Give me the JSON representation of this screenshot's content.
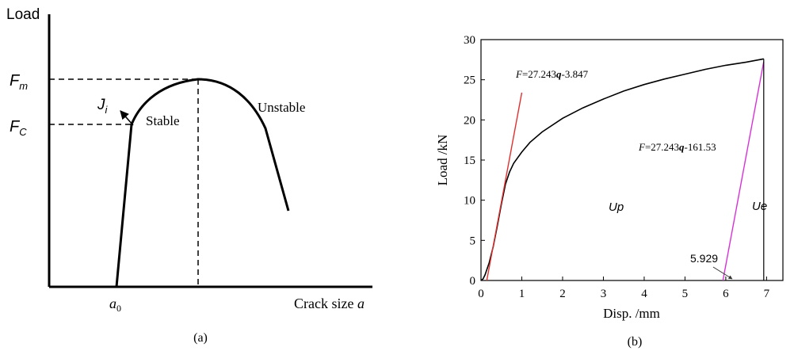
{
  "chart_data": [
    {
      "panel_label": "(a)",
      "type": "line",
      "ylabel": "Load",
      "xlabel_prefix": "Crack size ",
      "xlabel_var": "a",
      "x_tick": {
        "base": "a",
        "sub": "0"
      },
      "y_ticks": [
        {
          "base": "F",
          "sub": "m"
        },
        {
          "base": "F",
          "sub": "C"
        }
      ],
      "annotations": {
        "ji": {
          "base": "J",
          "sub": "i"
        },
        "stable": "Stable",
        "unstable": "Unstable"
      }
    },
    {
      "panel_label": "(b)",
      "type": "line",
      "xlabel": "Disp. /mm",
      "ylabel": "Load /kN",
      "xlim": [
        0,
        7.4
      ],
      "ylim": [
        0,
        30
      ],
      "x_ticks": [
        0,
        1,
        2,
        3,
        4,
        5,
        6,
        7
      ],
      "y_ticks": [
        0,
        5,
        10,
        15,
        20,
        25,
        30
      ],
      "series": [
        {
          "color": "#000000",
          "x": [
            0,
            0.05,
            0.1,
            0.2,
            0.3,
            0.4,
            0.5,
            0.6,
            0.7,
            0.8,
            1.0,
            1.2,
            1.5,
            2.0,
            2.5,
            3.0,
            3.5,
            4.0,
            4.5,
            5.0,
            5.5,
            6.0,
            6.5,
            6.93
          ],
          "y": [
            0,
            0.2,
            0.7,
            2.2,
            4.2,
            6.8,
            9.5,
            12.0,
            13.5,
            14.6,
            16.0,
            17.2,
            18.5,
            20.2,
            21.5,
            22.6,
            23.6,
            24.4,
            25.1,
            25.7,
            26.3,
            26.8,
            27.2,
            27.6
          ]
        },
        {
          "color": "#e03030",
          "x": [
            0.141,
            1.0
          ],
          "y": [
            0,
            23.396
          ]
        },
        {
          "color": "#d633d6",
          "x": [
            5.929,
            6.93
          ],
          "y": [
            0,
            27.27
          ]
        }
      ],
      "vertical_line_x": 6.93,
      "annotations": {
        "eq_top": {
          "var": "F",
          "mid": "=27.243",
          "var2": "q",
          "tail": "-3.847"
        },
        "eq_bottom": {
          "var": "F",
          "mid": "=27.243",
          "var2": "q",
          "tail": "-161.53"
        },
        "up": "Up",
        "ue": "Ue",
        "intercept": "5.929"
      }
    }
  ]
}
